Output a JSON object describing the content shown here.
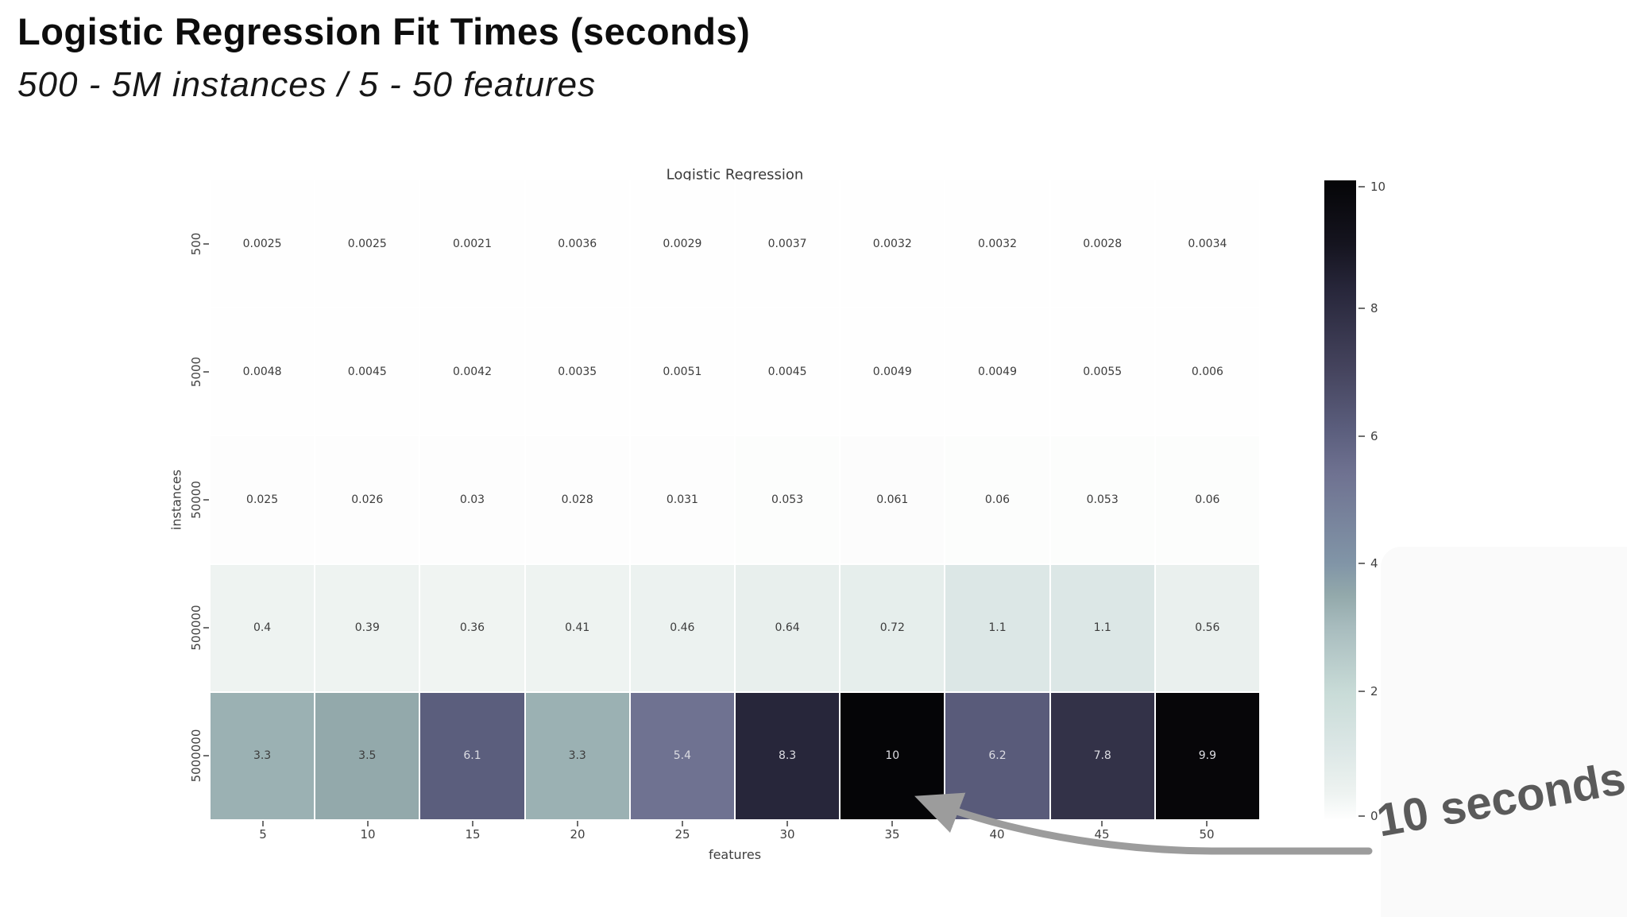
{
  "header": {
    "title": "Logistic Regression Fit Times (seconds)",
    "subtitle": "500 - 5M instances / 5 - 50 features"
  },
  "chart_data": {
    "type": "heatmap",
    "title": "Logistic Regression",
    "xlabel": "features",
    "ylabel": "instances",
    "x_ticks": [
      "5",
      "10",
      "15",
      "20",
      "25",
      "30",
      "35",
      "40",
      "45",
      "50"
    ],
    "y_ticks": [
      "500",
      "5000",
      "50000",
      "500000",
      "5000000"
    ],
    "values": [
      [
        0.0025,
        0.0025,
        0.0021,
        0.0036,
        0.0029,
        0.0037,
        0.0032,
        0.0032,
        0.0028,
        0.0034
      ],
      [
        0.0048,
        0.0045,
        0.0042,
        0.0035,
        0.0051,
        0.0045,
        0.0049,
        0.0049,
        0.0055,
        0.006
      ],
      [
        0.025,
        0.026,
        0.03,
        0.028,
        0.031,
        0.053,
        0.061,
        0.06,
        0.053,
        0.06
      ],
      [
        0.4,
        0.39,
        0.36,
        0.41,
        0.46,
        0.64,
        0.72,
        1.1,
        1.1,
        0.56
      ],
      [
        3.3,
        3.5,
        6.1,
        3.3,
        5.4,
        8.3,
        10,
        6.2,
        7.8,
        9.9
      ]
    ],
    "labels": [
      [
        "0.0025",
        "0.0025",
        "0.0021",
        "0.0036",
        "0.0029",
        "0.0037",
        "0.0032",
        "0.0032",
        "0.0028",
        "0.0034"
      ],
      [
        "0.0048",
        "0.0045",
        "0.0042",
        "0.0035",
        "0.0051",
        "0.0045",
        "0.0049",
        "0.0049",
        "0.0055",
        "0.006"
      ],
      [
        "0.025",
        "0.026",
        "0.03",
        "0.028",
        "0.031",
        "0.053",
        "0.061",
        "0.06",
        "0.053",
        "0.06"
      ],
      [
        "0.4",
        "0.39",
        "0.36",
        "0.41",
        "0.46",
        "0.64",
        "0.72",
        "1.1",
        "1.1",
        "0.56"
      ],
      [
        "3.3",
        "3.5",
        "6.1",
        "3.3",
        "5.4",
        "8.3",
        "10",
        "6.2",
        "7.8",
        "9.9"
      ]
    ],
    "colorbar": {
      "ticks": [
        10,
        8,
        6,
        4,
        2,
        0
      ],
      "vmin": 0,
      "vmax": 10,
      "position": "right"
    },
    "colormap_stops": [
      [
        0,
        "#fefefe"
      ],
      [
        0.2,
        "#f6f9f8"
      ],
      [
        0.4,
        "#eef3f1"
      ],
      [
        0.7,
        "#e6eeec"
      ],
      [
        1.1,
        "#dce7e6"
      ],
      [
        2,
        "#c8dbd7"
      ],
      [
        3,
        "#a8bcbe"
      ],
      [
        3.5,
        "#93a9ab"
      ],
      [
        4,
        "#8195a7"
      ],
      [
        5.4,
        "#6f7291"
      ],
      [
        6.1,
        "#5b5e7d"
      ],
      [
        7,
        "#46455f"
      ],
      [
        8.3,
        "#27263a"
      ],
      [
        9,
        "#15141f"
      ],
      [
        10,
        "#050507"
      ]
    ],
    "grid": false,
    "cell_text_dark": "#3c3c3c",
    "cell_text_light": "#dcdce2"
  },
  "annotation": {
    "label": "10 seconds",
    "arrow_color": "#9c9c9c",
    "text_color": "#5a5a5a"
  }
}
